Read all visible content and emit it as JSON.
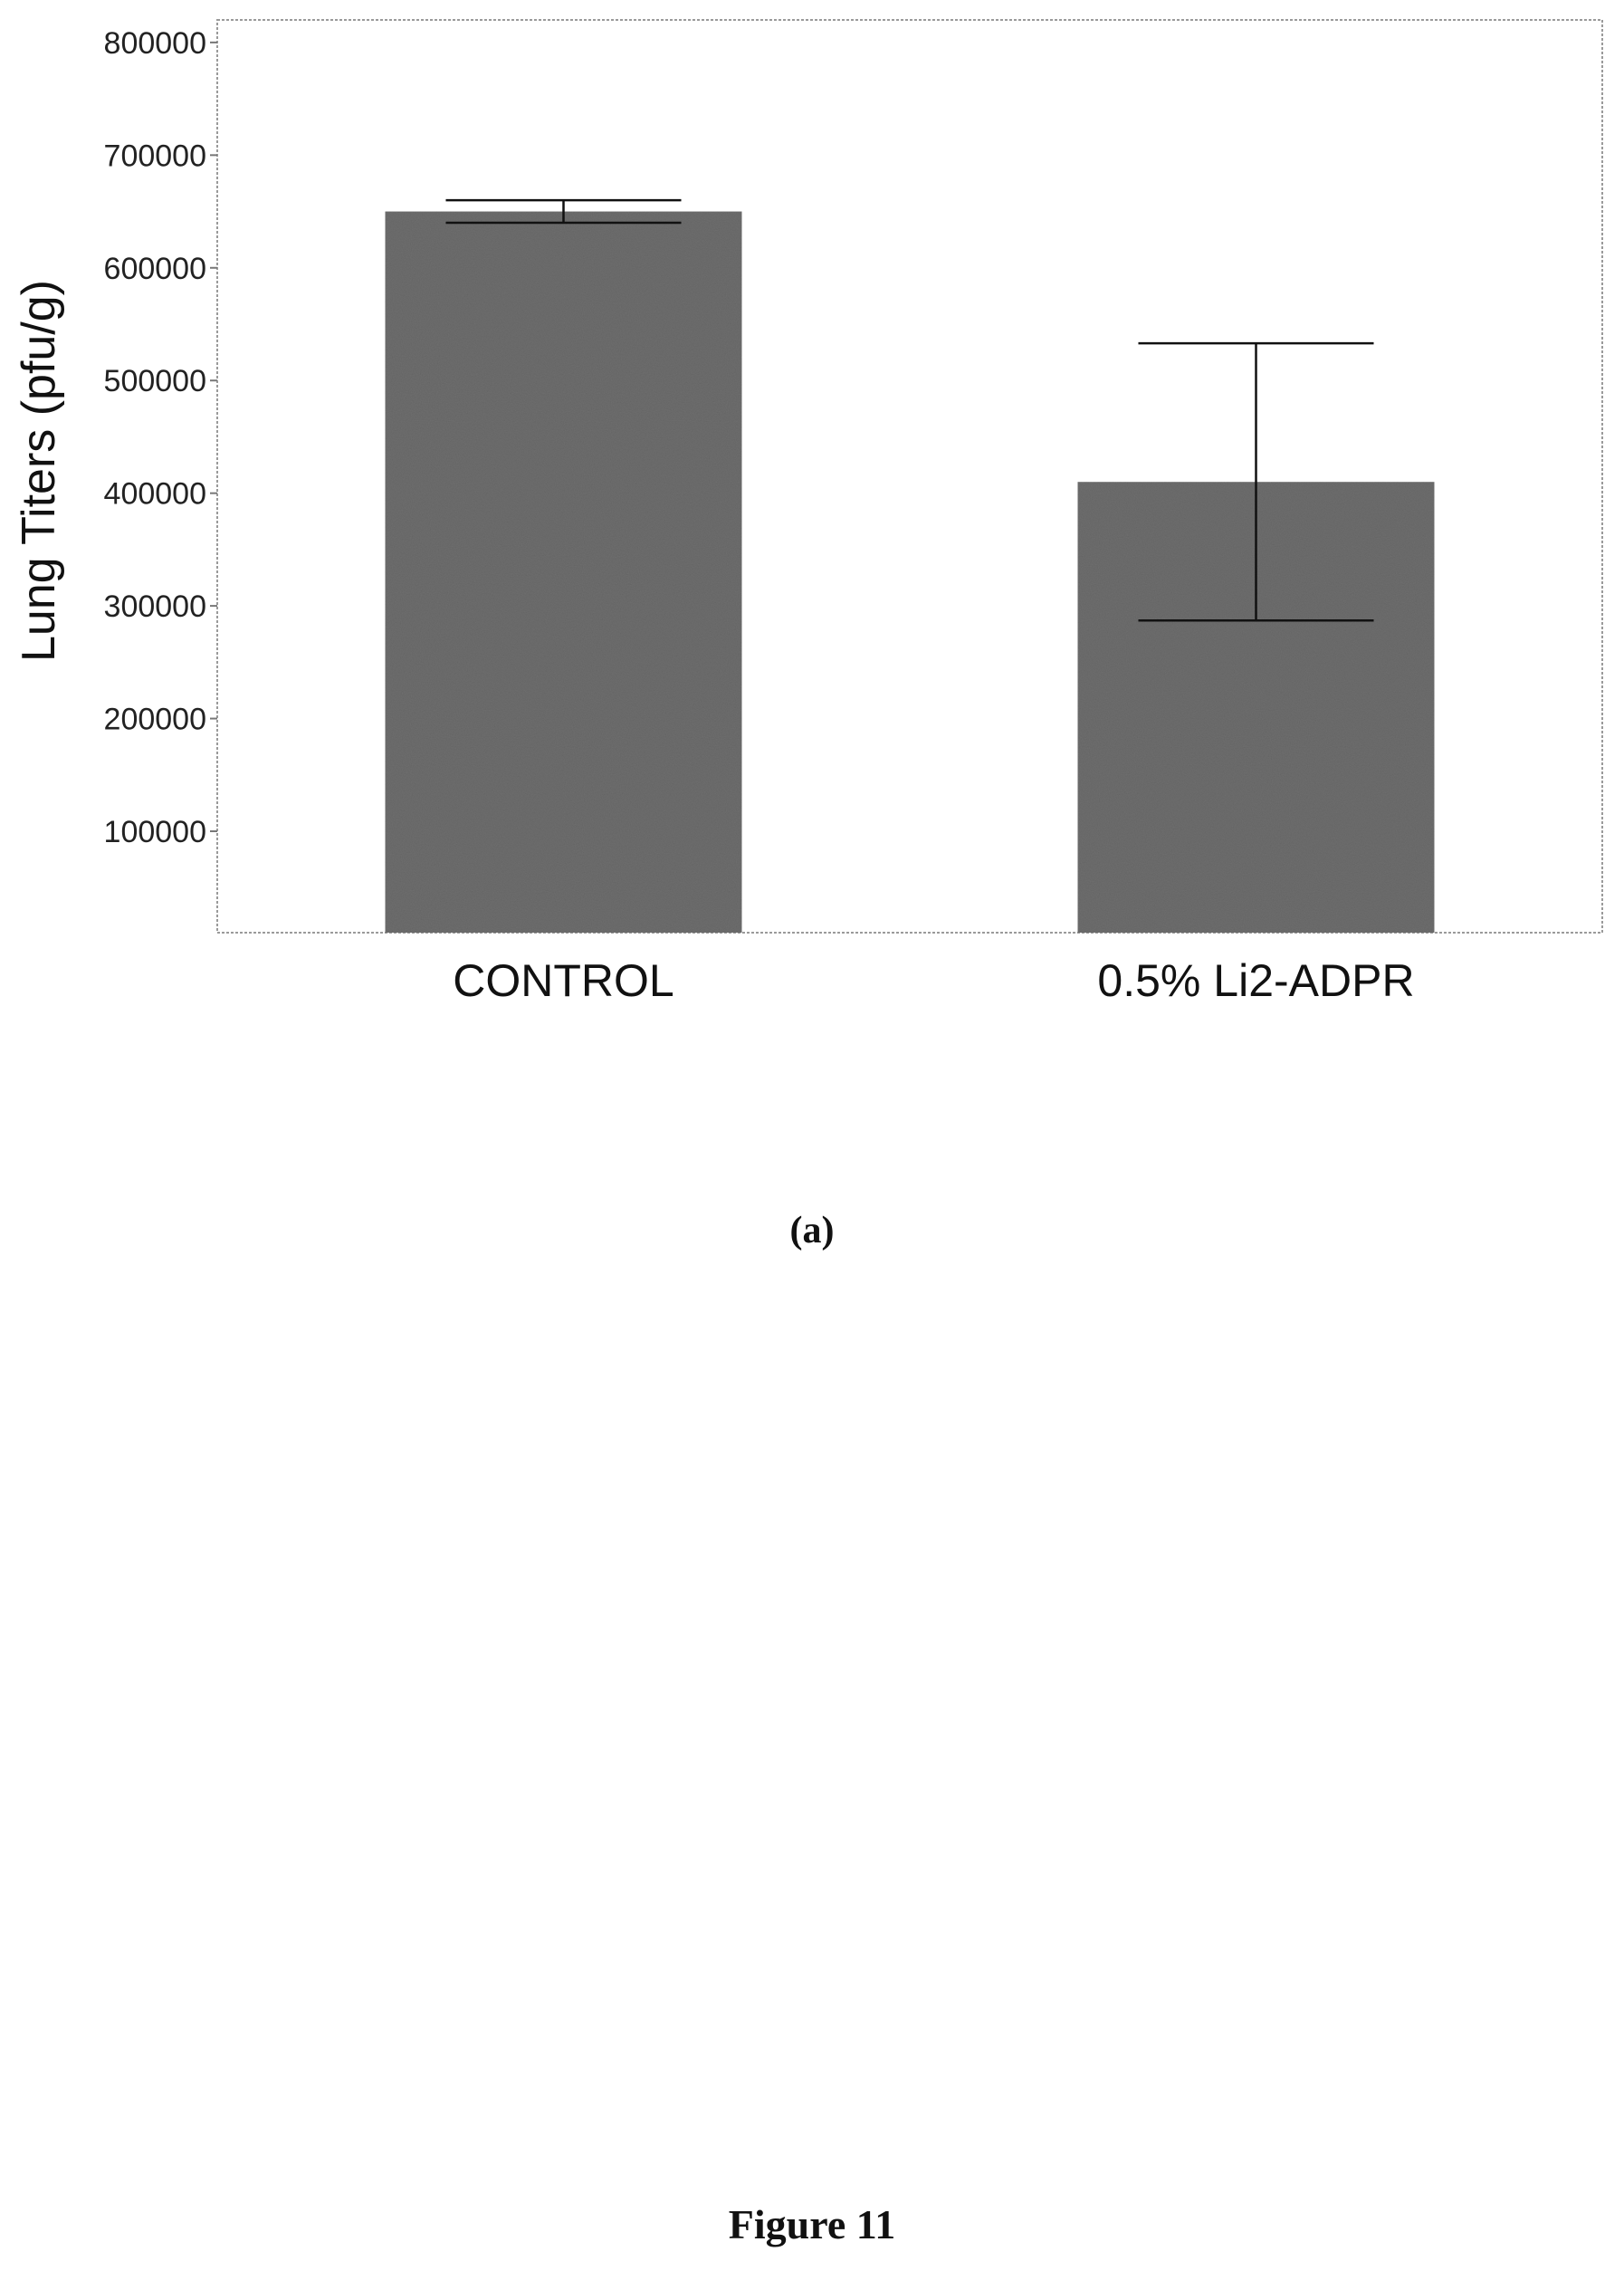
{
  "chart_data": {
    "type": "bar",
    "categories": [
      "CONTROL",
      "0.5% Li2-ADPR"
    ],
    "values": [
      650000,
      410000
    ],
    "error_bars": [
      {
        "low": 640000,
        "high": 660000
      },
      {
        "low": 287000,
        "high": 533000
      }
    ],
    "ylabel": "Lung Titers (pfu/g)",
    "xlabel": "",
    "ylim": [
      10000,
      820000
    ],
    "yticks": [
      100000,
      200000,
      300000,
      400000,
      500000,
      600000,
      700000,
      800000
    ],
    "grid": false,
    "bar_color": "#6e6e6e"
  },
  "panel_label": "(a)",
  "figure_caption": "Figure 11"
}
